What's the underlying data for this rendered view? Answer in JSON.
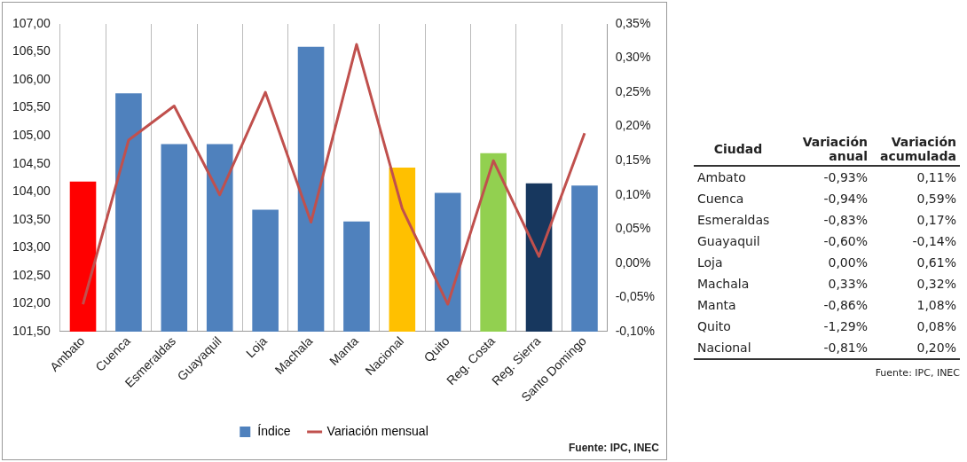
{
  "chart_data": [
    {
      "type": "bar",
      "categories": [
        "Ambato",
        "Cuenca",
        "Esmeraldas",
        "Guayaquil",
        "Loja",
        "Machala",
        "Manta",
        "Nacional",
        "Quito",
        "Reg. Costa",
        "Reg. Sierra",
        "Santo Domingo"
      ],
      "series": [
        {
          "name": "Índice",
          "type": "bar",
          "color": "#4f81bd",
          "colors": [
            "#ff0000",
            "#4f81bd",
            "#4f81bd",
            "#4f81bd",
            "#4f81bd",
            "#4f81bd",
            "#4f81bd",
            "#ffc000",
            "#4f81bd",
            "#92d050",
            "#17375e",
            "#4f81bd"
          ],
          "values": [
            104.18,
            105.76,
            104.85,
            104.85,
            103.68,
            106.59,
            103.47,
            104.43,
            103.98,
            104.69,
            104.15,
            104.11
          ]
        },
        {
          "name": "Variación mensual",
          "type": "line",
          "axis": "y2",
          "color": "#c0504d",
          "values": [
            -0.06,
            0.18,
            0.23,
            0.1,
            0.25,
            0.06,
            0.32,
            0.08,
            -0.06,
            0.15,
            0.01,
            0.19
          ]
        }
      ],
      "ylim": [
        101.5,
        107
      ],
      "yticks": [
        {
          "value": 101.5,
          "label": "101,50"
        },
        {
          "value": 102,
          "label": "102,00"
        },
        {
          "value": 102.5,
          "label": "102,50"
        },
        {
          "value": 103,
          "label": "103,00"
        },
        {
          "value": 103.5,
          "label": "103,50"
        },
        {
          "value": 104,
          "label": "104,00"
        },
        {
          "value": 104.5,
          "label": "104,50"
        },
        {
          "value": 105,
          "label": "105,00"
        },
        {
          "value": 105.5,
          "label": "105,50"
        },
        {
          "value": 106,
          "label": "106,00"
        },
        {
          "value": 106.5,
          "label": "106,50"
        },
        {
          "value": 107,
          "label": "107,00"
        }
      ],
      "y2lim": [
        -0.1,
        0.35
      ],
      "y2ticks": [
        {
          "value": -0.1,
          "label": "-0,10%"
        },
        {
          "value": -0.05,
          "label": "-0,05%"
        },
        {
          "value": 0,
          "label": "0,00%"
        },
        {
          "value": 0.05,
          "label": "0,05%"
        },
        {
          "value": 0.1,
          "label": "0,10%"
        },
        {
          "value": 0.15,
          "label": "0,15%"
        },
        {
          "value": 0.2,
          "label": "0,20%"
        },
        {
          "value": 0.25,
          "label": "0,25%"
        },
        {
          "value": 0.3,
          "label": "0,30%"
        },
        {
          "value": 0.35,
          "label": "0,35%"
        }
      ],
      "grid": "x",
      "legend": "bottom",
      "marker": "none",
      "line_style": "solid",
      "annotations": [
        "Fuente: IPC, INEC"
      ]
    },
    {
      "type": "other",
      "ylabel": "Ciudad",
      "categories": [
        "Variación anual",
        "Variación acumulada"
      ],
      "y_categories": [
        "Ambato",
        "Cuenca",
        "Esmeraldas",
        "Guayaquil",
        "Loja",
        "Machala",
        "Manta",
        "Quito",
        "Nacional"
      ],
      "cell_labels": [
        [
          "-0,93%",
          "0,11%"
        ],
        [
          "-0,94%",
          "0,59%"
        ],
        [
          "-0,83%",
          "0,17%"
        ],
        [
          "-0,60%",
          "-0,14%"
        ],
        [
          "0,00%",
          "0,61%"
        ],
        [
          "0,33%",
          "0,32%"
        ],
        [
          "-0,86%",
          "1,08%"
        ],
        [
          "-1,29%",
          "0,08%"
        ],
        [
          "-0,81%",
          "0,20%"
        ]
      ],
      "annotations": [
        "Fuente: IPC, INEC"
      ]
    }
  ]
}
